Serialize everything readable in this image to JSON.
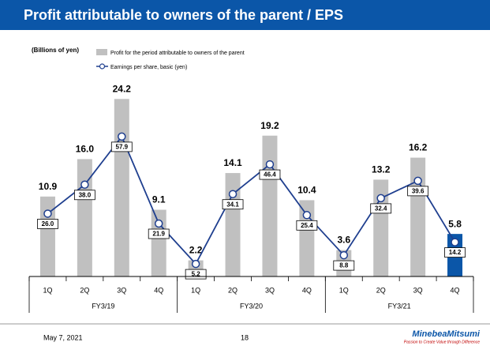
{
  "header": {
    "title": "Profit attributable to owners of the parent / EPS"
  },
  "chart_data": {
    "type": "bar-line",
    "unit_label": "(Billions of yen)",
    "categories": [
      "1Q",
      "2Q",
      "3Q",
      "4Q",
      "1Q",
      "2Q",
      "3Q",
      "4Q",
      "1Q",
      "2Q",
      "3Q",
      "4Q"
    ],
    "groups": [
      "FY3/19",
      "FY3/20",
      "FY3/21"
    ],
    "series": [
      {
        "name": "Profit for the period attributable to owners of the parent",
        "color": "#c0c0c0",
        "colors": [
          "#c0c0c0",
          "#c0c0c0",
          "#c0c0c0",
          "#c0c0c0",
          "#c0c0c0",
          "#c0c0c0",
          "#c0c0c0",
          "#c0c0c0",
          "#c0c0c0",
          "#c0c0c0",
          "#c0c0c0",
          "#0b56a8"
        ],
        "values": [
          10.9,
          16.0,
          24.2,
          9.1,
          2.2,
          14.1,
          19.2,
          10.4,
          3.6,
          13.2,
          16.2,
          5.8
        ],
        "value_labels": [
          "10.9",
          "16.0",
          "24.2",
          "9.1",
          "2.2",
          "14.1",
          "19.2",
          "10.4",
          "3.6",
          "13.2",
          "16.2",
          "5.8"
        ]
      },
      {
        "name": "Earnings per share, basic (yen)",
        "color": "#1f3f8f",
        "axis": "y2",
        "values": [
          26.0,
          38.0,
          57.9,
          21.9,
          5.2,
          34.1,
          46.4,
          25.4,
          8.8,
          32.4,
          39.6,
          14.2
        ],
        "value_labels": [
          "26.0",
          "38.0",
          "57.9",
          "21.9",
          "5.2",
          "34.1",
          "46.4",
          "25.4",
          "8.8",
          "32.4",
          "39.6",
          "14.2"
        ]
      }
    ],
    "ylim": [
      0,
      28
    ],
    "y2lim": [
      0,
      85
    ]
  },
  "footer": {
    "date": "May 7, 2021",
    "page": "18",
    "logo": "MinebeaMitsumi",
    "tagline": "Passion to Create Value through Difference"
  }
}
